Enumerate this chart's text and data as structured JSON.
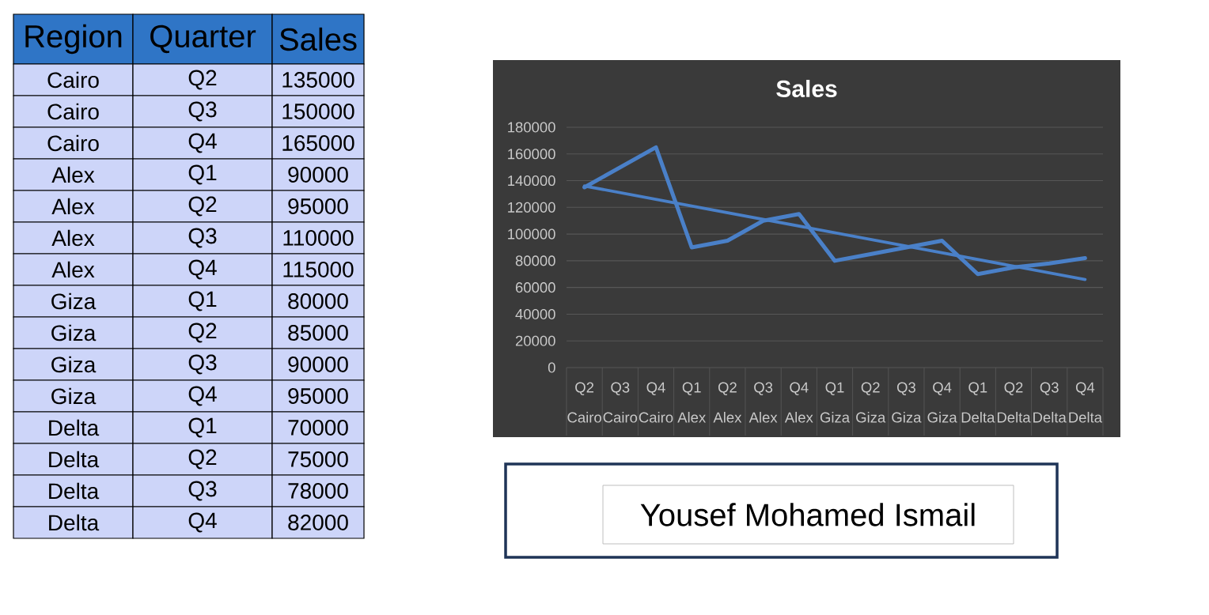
{
  "chart_data": {
    "type": "line",
    "title": "Sales",
    "categories": [
      "Q2 Cairo",
      "Q3 Cairo",
      "Q4 Cairo",
      "Q1 Alex",
      "Q2 Alex",
      "Q3 Alex",
      "Q4 Alex",
      "Q1 Giza",
      "Q2 Giza",
      "Q3 Giza",
      "Q4 Giza",
      "Q1 Delta",
      "Q2 Delta",
      "Q3 Delta",
      "Q4 Delta"
    ],
    "series": [
      {
        "color": "#4a80c8",
        "values": [
          135000,
          150000,
          165000,
          90000,
          95000,
          110000,
          115000,
          80000,
          85000,
          90000,
          95000,
          70000,
          75000,
          78000,
          82000
        ]
      },
      {
        "type": "line",
        "color": "#4a80c8",
        "x": [
          "Q2 Cairo",
          "Q4 Delta"
        ],
        "values": [
          136000,
          66000
        ]
      }
    ],
    "ylim": [
      0,
      180000
    ],
    "yticks": [
      0,
      20000,
      40000,
      60000,
      80000,
      100000,
      120000,
      140000,
      160000,
      180000
    ],
    "grid": "y",
    "annotations": [
      "Region",
      "Quarter",
      "Sales",
      "Cairo",
      "Q2",
      "135000",
      "Cairo",
      "Q3",
      "150000",
      "Cairo",
      "Q4",
      "165000",
      "Alex",
      "Q1",
      "90000",
      "Alex",
      "Q2",
      "95000",
      "Alex",
      "Q3",
      "110000",
      "Alex",
      "Q4",
      "115000",
      "Giza",
      "Q1",
      "80000",
      "Giza",
      "Q2",
      "85000",
      "Giza",
      "Q3",
      "90000",
      "Giza",
      "Q4",
      "95000",
      "Delta",
      "Q1",
      "70000",
      "Delta",
      "Q2",
      "75000",
      "Delta",
      "Q3",
      "78000",
      "Delta",
      "Q4",
      "82000",
      "Yousef Mohamed Ismail"
    ]
  }
}
